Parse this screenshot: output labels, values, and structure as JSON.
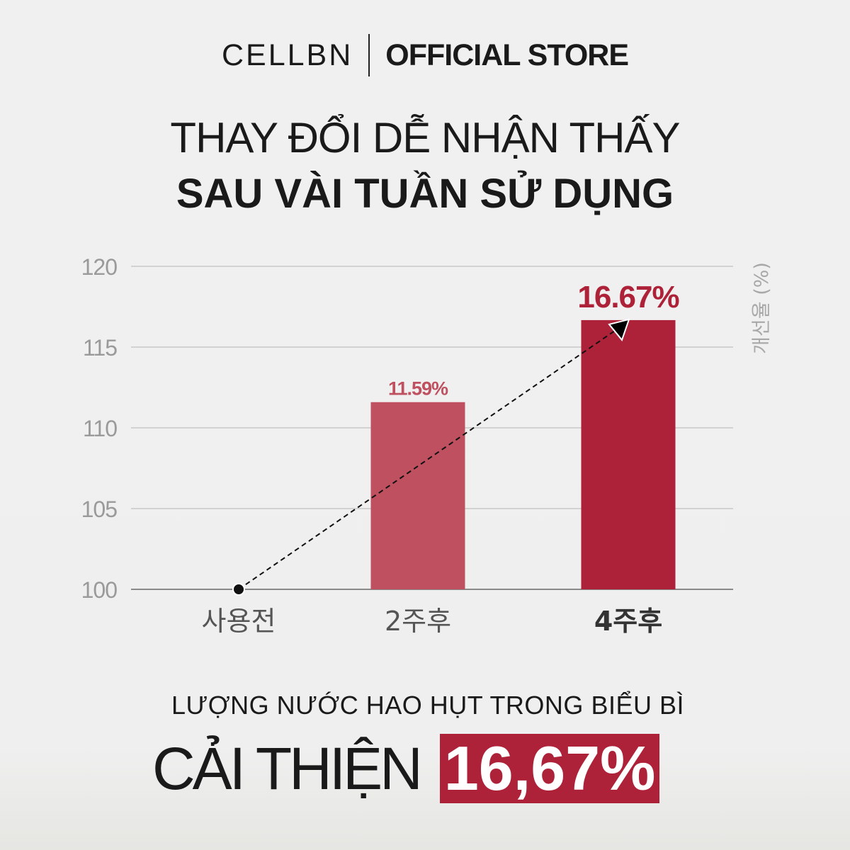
{
  "brand": {
    "name": "CELLBN",
    "store": "OFFICIAL STORE"
  },
  "headline": {
    "line1": "THAY ĐỔI DỄ NHẬN THẤY",
    "line2": "SAU VÀI TUẦN SỬ DỤNG"
  },
  "chart_data": {
    "type": "bar",
    "categories": [
      "사용전",
      "2주후",
      "4주후"
    ],
    "values": [
      100,
      111.59,
      116.67
    ],
    "data_labels": [
      "",
      "11.59%",
      "16.67%"
    ],
    "ylabel": "개선율 (%)",
    "ylim": [
      100,
      120
    ],
    "yticks": [
      "100",
      "105",
      "110",
      "115",
      "120"
    ],
    "grid": true,
    "bar_colors": [
      "#bf5060",
      "#bf5060",
      "#ad2238"
    ],
    "trend_arrow": {
      "from": "사용전",
      "to": "4주후",
      "style": "dashed"
    }
  },
  "footer": {
    "subtitle": "LƯỢNG NƯỚC HAO HỤT TRONG BIỂU BÌ",
    "label": "CẢI THIỆN",
    "value": "16,67%"
  }
}
